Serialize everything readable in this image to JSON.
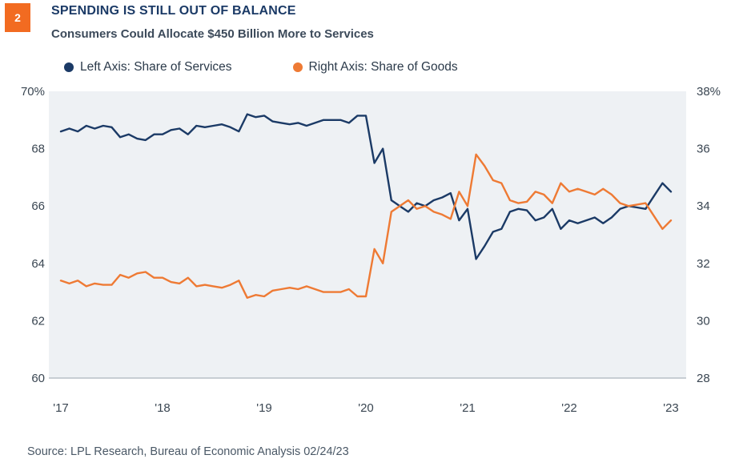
{
  "header": {
    "badge": "2",
    "title": "SPENDING IS STILL OUT OF BALANCE",
    "subtitle": "Consumers Could Allocate  $450 Billion More to Services"
  },
  "legend": {
    "services_label": "Left Axis: Share of Services",
    "goods_label": "Right Axis: Share of Goods"
  },
  "source": "Source: LPL Research, Bureau of Economic Analysis  02/24/23",
  "colors": {
    "services": "#1b3a66",
    "goods": "#ee7a34",
    "plot_bg": "#eef1f4"
  },
  "chart_data": {
    "type": "line",
    "x_tick_labels": [
      "'17",
      "'18",
      "'19",
      "'20",
      "'21",
      "'22",
      "'23"
    ],
    "left_axis": {
      "ticks": [
        "70%",
        "68",
        "66",
        "64",
        "62",
        "60"
      ],
      "ylim": [
        60,
        70
      ]
    },
    "right_axis": {
      "ticks": [
        "38%",
        "36",
        "34",
        "32",
        "30",
        "28"
      ],
      "ylim": [
        28,
        38
      ]
    },
    "xlim": [
      "2017-01",
      "2023-01"
    ],
    "grid": false,
    "legend_position": "top",
    "series": [
      {
        "name": "Left Axis: Share of Services",
        "axis": "left",
        "x": [
          "2017-01",
          "2017-02",
          "2017-03",
          "2017-04",
          "2017-05",
          "2017-06",
          "2017-07",
          "2017-08",
          "2017-09",
          "2017-10",
          "2017-11",
          "2017-12",
          "2018-01",
          "2018-02",
          "2018-03",
          "2018-04",
          "2018-05",
          "2018-06",
          "2018-07",
          "2018-08",
          "2018-09",
          "2018-10",
          "2018-11",
          "2018-12",
          "2019-01",
          "2019-02",
          "2019-03",
          "2019-04",
          "2019-05",
          "2019-06",
          "2019-07",
          "2019-08",
          "2019-09",
          "2019-10",
          "2019-11",
          "2019-12",
          "2020-01",
          "2020-02",
          "2020-03",
          "2020-04",
          "2020-05",
          "2020-06",
          "2020-07",
          "2020-08",
          "2020-09",
          "2020-10",
          "2020-11",
          "2020-12",
          "2021-01",
          "2021-02",
          "2021-03",
          "2021-04",
          "2021-05",
          "2021-06",
          "2021-07",
          "2021-08",
          "2021-09",
          "2021-10",
          "2021-11",
          "2021-12",
          "2022-01",
          "2022-02",
          "2022-03",
          "2022-04",
          "2022-05",
          "2022-06",
          "2022-07",
          "2022-08",
          "2022-09",
          "2022-10",
          "2022-11",
          "2022-12",
          "2023-01"
        ],
        "values": [
          68.6,
          68.7,
          68.6,
          68.8,
          68.7,
          68.8,
          68.75,
          68.4,
          68.5,
          68.35,
          68.3,
          68.5,
          68.5,
          68.65,
          68.7,
          68.5,
          68.8,
          68.75,
          68.8,
          68.85,
          68.75,
          68.6,
          69.2,
          69.1,
          69.15,
          68.95,
          68.9,
          68.85,
          68.9,
          68.8,
          68.9,
          69.0,
          69.0,
          69.0,
          68.9,
          69.15,
          69.15,
          67.5,
          68.0,
          66.2,
          66.0,
          65.8,
          66.1,
          66.0,
          66.2,
          66.3,
          66.45,
          65.5,
          65.9,
          64.15,
          64.6,
          65.1,
          65.2,
          65.8,
          65.9,
          65.85,
          65.5,
          65.6,
          65.9,
          65.2,
          65.5,
          65.4,
          65.5,
          65.6,
          65.4,
          65.6,
          65.9,
          66.0,
          65.95,
          65.9,
          66.35,
          66.8,
          66.5
        ]
      },
      {
        "name": "Right Axis: Share of Goods",
        "axis": "right",
        "x": [
          "2017-01",
          "2017-02",
          "2017-03",
          "2017-04",
          "2017-05",
          "2017-06",
          "2017-07",
          "2017-08",
          "2017-09",
          "2017-10",
          "2017-11",
          "2017-12",
          "2018-01",
          "2018-02",
          "2018-03",
          "2018-04",
          "2018-05",
          "2018-06",
          "2018-07",
          "2018-08",
          "2018-09",
          "2018-10",
          "2018-11",
          "2018-12",
          "2019-01",
          "2019-02",
          "2019-03",
          "2019-04",
          "2019-05",
          "2019-06",
          "2019-07",
          "2019-08",
          "2019-09",
          "2019-10",
          "2019-11",
          "2019-12",
          "2020-01",
          "2020-02",
          "2020-03",
          "2020-04",
          "2020-05",
          "2020-06",
          "2020-07",
          "2020-08",
          "2020-09",
          "2020-10",
          "2020-11",
          "2020-12",
          "2021-01",
          "2021-02",
          "2021-03",
          "2021-04",
          "2021-05",
          "2021-06",
          "2021-07",
          "2021-08",
          "2021-09",
          "2021-10",
          "2021-11",
          "2021-12",
          "2022-01",
          "2022-02",
          "2022-03",
          "2022-04",
          "2022-05",
          "2022-06",
          "2022-07",
          "2022-08",
          "2022-09",
          "2022-10",
          "2022-11",
          "2022-12",
          "2023-01"
        ],
        "values": [
          31.4,
          31.3,
          31.4,
          31.2,
          31.3,
          31.25,
          31.25,
          31.6,
          31.5,
          31.65,
          31.7,
          31.5,
          31.5,
          31.35,
          31.3,
          31.5,
          31.2,
          31.25,
          31.2,
          31.15,
          31.25,
          31.4,
          30.8,
          30.9,
          30.85,
          31.05,
          31.1,
          31.15,
          31.1,
          31.2,
          31.1,
          31.0,
          31.0,
          31.0,
          31.1,
          30.85,
          30.85,
          32.5,
          32.0,
          33.8,
          34.0,
          34.2,
          33.9,
          34.0,
          33.8,
          33.7,
          33.55,
          34.5,
          34.0,
          35.8,
          35.4,
          34.9,
          34.8,
          34.2,
          34.1,
          34.15,
          34.5,
          34.4,
          34.1,
          34.8,
          34.5,
          34.6,
          34.5,
          34.4,
          34.6,
          34.4,
          34.1,
          34.0,
          34.05,
          34.1,
          33.65,
          33.2,
          33.5
        ]
      }
    ]
  }
}
